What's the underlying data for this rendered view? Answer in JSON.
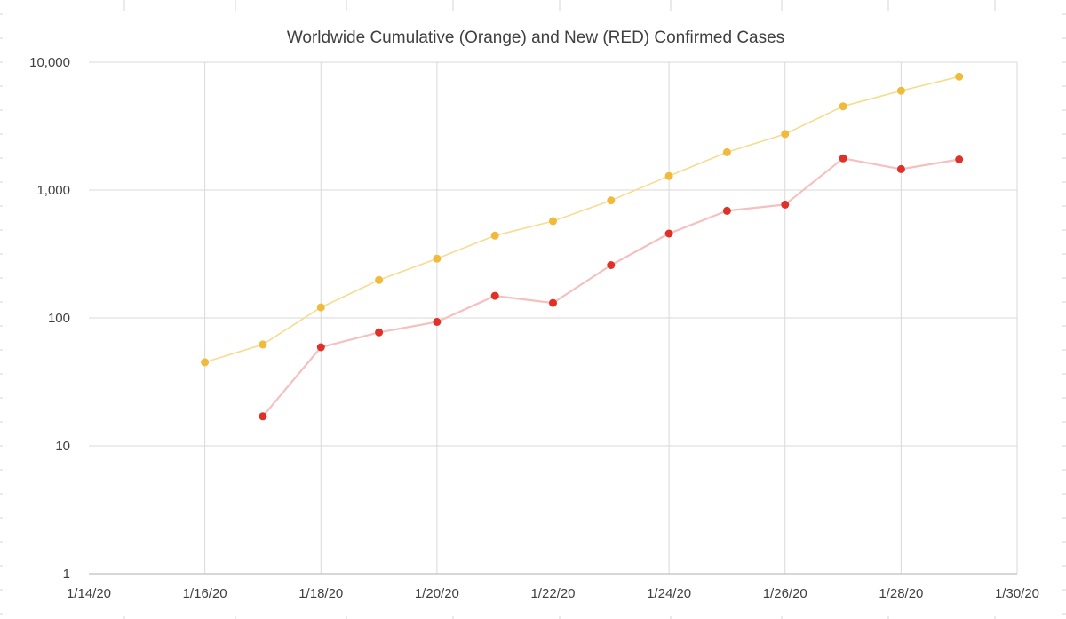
{
  "chart_data": {
    "type": "line",
    "title": "Worldwide Cumulative (Orange) and New (RED) Confirmed Cases",
    "xlabel": "",
    "ylabel": "",
    "y_scale": "log",
    "ylim": [
      1,
      10000
    ],
    "y_ticks": [
      "1",
      "10",
      "100",
      "1,000",
      "10,000"
    ],
    "xlim": [
      "2020-01-14",
      "2020-01-30"
    ],
    "x_ticks": [
      "1/14/20",
      "1/16/20",
      "1/18/20",
      "1/20/20",
      "1/22/20",
      "1/24/20",
      "1/26/20",
      "1/28/20",
      "1/30/20"
    ],
    "x_tick_values": [
      "2020-01-14",
      "2020-01-16",
      "2020-01-18",
      "2020-01-20",
      "2020-01-22",
      "2020-01-24",
      "2020-01-26",
      "2020-01-28",
      "2020-01-30"
    ],
    "grid": true,
    "legend": "none",
    "series": [
      {
        "color": "#F2BA3A",
        "line_color": "#F5DC8F",
        "x": [
          "2020-01-16",
          "2020-01-17",
          "2020-01-18",
          "2020-01-19",
          "2020-01-20",
          "2020-01-21",
          "2020-01-22",
          "2020-01-23",
          "2020-01-24",
          "2020-01-25",
          "2020-01-26",
          "2020-01-27",
          "2020-01-28",
          "2020-01-29"
        ],
        "values": [
          45,
          62,
          121,
          198,
          291,
          440,
          571,
          830,
          1287,
          1975,
          2744,
          4515,
          5974,
          7711
        ]
      },
      {
        "color": "#E03128",
        "line_color": "#F5C0C0",
        "x": [
          "2020-01-17",
          "2020-01-18",
          "2020-01-19",
          "2020-01-20",
          "2020-01-21",
          "2020-01-22",
          "2020-01-23",
          "2020-01-24",
          "2020-01-25",
          "2020-01-26",
          "2020-01-27",
          "2020-01-28",
          "2020-01-29"
        ],
        "values": [
          17,
          59,
          77,
          93,
          149,
          131,
          259,
          457,
          688,
          769,
          1771,
          1459,
          1737
        ]
      }
    ]
  }
}
